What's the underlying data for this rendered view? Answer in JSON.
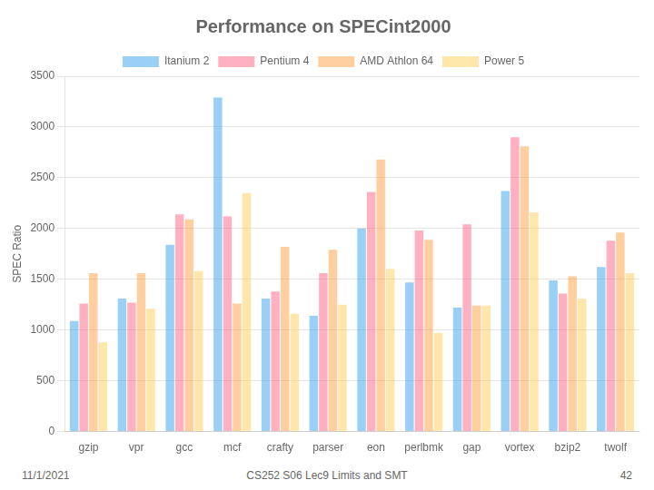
{
  "chart_data": {
    "type": "bar",
    "title": "Performance on SPECint2000",
    "annotations": [
      "11/1/2021",
      "CS252 S06 Lec9 Limits and SMT",
      "42"
    ],
    "y_label": "SPEC Ratio",
    "categories": [
      "gzip",
      "vpr",
      "gcc",
      "mcf",
      "crafty",
      "parser",
      "eon",
      "perlbmk",
      "gap",
      "vortex",
      "bzip2",
      "twolf"
    ],
    "series": [
      {
        "name": "Itanium 2",
        "values": [
          1090,
          1310,
          1840,
          3290,
          1310,
          1140,
          2000,
          1470,
          1220,
          2370,
          1490,
          1620
        ]
      },
      {
        "name": "Pentium 4",
        "values": [
          1260,
          1270,
          2140,
          2120,
          1380,
          1560,
          2360,
          1980,
          2040,
          2900,
          1360,
          1880
        ]
      },
      {
        "name": "AMD Athlon 64",
        "values": [
          1560,
          1560,
          2090,
          1260,
          1820,
          1790,
          2680,
          1890,
          1240,
          2810,
          1530,
          1960
        ]
      },
      {
        "name": "Power 5",
        "values": [
          880,
          1210,
          1580,
          2350,
          1160,
          1250,
          1600,
          970,
          1240,
          2160,
          1310,
          1560
        ]
      }
    ],
    "ylim": [
      0,
      3500
    ],
    "yticks": [
      0,
      500,
      1000,
      1500,
      2000,
      2500,
      3000,
      3500
    ],
    "grid": true,
    "legend": "top"
  }
}
